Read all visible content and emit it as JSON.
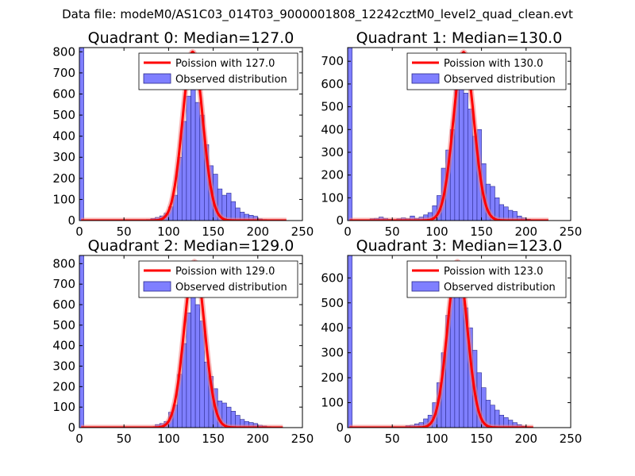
{
  "figure_title": "Data file: modeM0/AS1C03_014T03_9000001808_12242cztM0_level2_quad_clean.evt",
  "colors": {
    "hist_fill": "#7f7fff",
    "hist_edge": "#2a2a8c",
    "poisson_line": "#ff0000",
    "poisson_shadow": "#f08080"
  },
  "chart_data": [
    {
      "type": "bar",
      "title": "Quadrant 0: Median=127.0",
      "median": 127.0,
      "legend": {
        "line_label": "Poission with 127.0",
        "bar_label": "Observed distribution",
        "location": "upper-right"
      },
      "xlim": [
        0,
        250
      ],
      "ylim": [
        0,
        820
      ],
      "xticks": [
        0,
        50,
        100,
        150,
        200,
        250
      ],
      "yticks": [
        0,
        100,
        200,
        300,
        400,
        500,
        600,
        700,
        800
      ],
      "bin_width": 5,
      "bins": [
        {
          "x": 0,
          "y": 820
        },
        {
          "x": 75,
          "y": 5
        },
        {
          "x": 80,
          "y": 10
        },
        {
          "x": 85,
          "y": 15
        },
        {
          "x": 90,
          "y": 22
        },
        {
          "x": 95,
          "y": 35
        },
        {
          "x": 100,
          "y": 65
        },
        {
          "x": 105,
          "y": 120
        },
        {
          "x": 110,
          "y": 300
        },
        {
          "x": 115,
          "y": 470
        },
        {
          "x": 120,
          "y": 590
        },
        {
          "x": 125,
          "y": 700
        },
        {
          "x": 130,
          "y": 560
        },
        {
          "x": 135,
          "y": 500
        },
        {
          "x": 140,
          "y": 360
        },
        {
          "x": 145,
          "y": 260
        },
        {
          "x": 150,
          "y": 220
        },
        {
          "x": 155,
          "y": 150
        },
        {
          "x": 160,
          "y": 120
        },
        {
          "x": 165,
          "y": 130
        },
        {
          "x": 170,
          "y": 90
        },
        {
          "x": 175,
          "y": 60
        },
        {
          "x": 180,
          "y": 40
        },
        {
          "x": 185,
          "y": 30
        },
        {
          "x": 190,
          "y": 25
        },
        {
          "x": 195,
          "y": 20
        },
        {
          "x": 200,
          "y": 8
        },
        {
          "x": 205,
          "y": 5
        },
        {
          "x": 210,
          "y": 3
        }
      ],
      "line_xrange": [
        2,
        232
      ],
      "line_peak": 800
    },
    {
      "type": "bar",
      "title": "Quadrant 1: Median=130.0",
      "median": 130.0,
      "legend": {
        "line_label": "Poission with 130.0",
        "bar_label": "Observed distribution",
        "location": "upper-right"
      },
      "xlim": [
        0,
        250
      ],
      "ylim": [
        0,
        760
      ],
      "xticks": [
        0,
        50,
        100,
        150,
        200,
        250
      ],
      "yticks": [
        0,
        100,
        200,
        300,
        400,
        500,
        600,
        700
      ],
      "bin_width": 5,
      "bins": [
        {
          "x": 0,
          "y": 760
        },
        {
          "x": 25,
          "y": 8
        },
        {
          "x": 30,
          "y": 10
        },
        {
          "x": 35,
          "y": 15
        },
        {
          "x": 40,
          "y": 10
        },
        {
          "x": 45,
          "y": 5
        },
        {
          "x": 55,
          "y": 8
        },
        {
          "x": 60,
          "y": 12
        },
        {
          "x": 65,
          "y": 8
        },
        {
          "x": 70,
          "y": 20
        },
        {
          "x": 75,
          "y": 10
        },
        {
          "x": 80,
          "y": 15
        },
        {
          "x": 85,
          "y": 25
        },
        {
          "x": 90,
          "y": 35
        },
        {
          "x": 95,
          "y": 65
        },
        {
          "x": 100,
          "y": 110
        },
        {
          "x": 105,
          "y": 230
        },
        {
          "x": 110,
          "y": 310
        },
        {
          "x": 115,
          "y": 400
        },
        {
          "x": 120,
          "y": 600
        },
        {
          "x": 125,
          "y": 680
        },
        {
          "x": 130,
          "y": 560
        },
        {
          "x": 135,
          "y": 490
        },
        {
          "x": 140,
          "y": 370
        },
        {
          "x": 145,
          "y": 400
        },
        {
          "x": 150,
          "y": 250
        },
        {
          "x": 155,
          "y": 160
        },
        {
          "x": 160,
          "y": 150
        },
        {
          "x": 165,
          "y": 100
        },
        {
          "x": 170,
          "y": 70
        },
        {
          "x": 175,
          "y": 60
        },
        {
          "x": 180,
          "y": 45
        },
        {
          "x": 185,
          "y": 40
        },
        {
          "x": 190,
          "y": 20
        },
        {
          "x": 195,
          "y": 12
        },
        {
          "x": 200,
          "y": 6
        },
        {
          "x": 205,
          "y": 3
        }
      ],
      "line_xrange": [
        2,
        225
      ],
      "line_peak": 740
    },
    {
      "type": "bar",
      "title": "Quadrant 2: Median=129.0",
      "median": 129.0,
      "legend": {
        "line_label": "Poission with 129.0",
        "bar_label": "Observed distribution",
        "location": "upper-right"
      },
      "xlim": [
        0,
        250
      ],
      "ylim": [
        0,
        840
      ],
      "xticks": [
        0,
        50,
        100,
        150,
        200,
        250
      ],
      "yticks": [
        0,
        100,
        200,
        300,
        400,
        500,
        600,
        700,
        800
      ],
      "bin_width": 5,
      "bins": [
        {
          "x": 0,
          "y": 840
        },
        {
          "x": 85,
          "y": 15
        },
        {
          "x": 90,
          "y": 20
        },
        {
          "x": 95,
          "y": 30
        },
        {
          "x": 100,
          "y": 75
        },
        {
          "x": 105,
          "y": 110
        },
        {
          "x": 110,
          "y": 260
        },
        {
          "x": 115,
          "y": 410
        },
        {
          "x": 120,
          "y": 560
        },
        {
          "x": 125,
          "y": 650
        },
        {
          "x": 130,
          "y": 600
        },
        {
          "x": 135,
          "y": 520
        },
        {
          "x": 140,
          "y": 320
        },
        {
          "x": 145,
          "y": 250
        },
        {
          "x": 150,
          "y": 190
        },
        {
          "x": 155,
          "y": 130
        },
        {
          "x": 160,
          "y": 120
        },
        {
          "x": 165,
          "y": 100
        },
        {
          "x": 170,
          "y": 80
        },
        {
          "x": 175,
          "y": 60
        },
        {
          "x": 180,
          "y": 40
        },
        {
          "x": 185,
          "y": 30
        },
        {
          "x": 190,
          "y": 25
        },
        {
          "x": 195,
          "y": 20
        },
        {
          "x": 200,
          "y": 12
        },
        {
          "x": 205,
          "y": 8
        },
        {
          "x": 210,
          "y": 5
        }
      ],
      "line_xrange": [
        2,
        228
      ],
      "line_peak": 810
    },
    {
      "type": "bar",
      "title": "Quadrant 3: Median=123.0",
      "median": 123.0,
      "legend": {
        "line_label": "Poission with 123.0",
        "bar_label": "Observed distribution",
        "location": "upper-right"
      },
      "xlim": [
        0,
        250
      ],
      "ylim": [
        0,
        690
      ],
      "xticks": [
        0,
        50,
        100,
        150,
        200,
        250
      ],
      "yticks": [
        0,
        100,
        200,
        300,
        400,
        500,
        600
      ],
      "bin_width": 5,
      "bins": [
        {
          "x": 0,
          "y": 690
        },
        {
          "x": 65,
          "y": 8
        },
        {
          "x": 70,
          "y": 10
        },
        {
          "x": 75,
          "y": 15
        },
        {
          "x": 80,
          "y": 20
        },
        {
          "x": 85,
          "y": 35
        },
        {
          "x": 90,
          "y": 50
        },
        {
          "x": 95,
          "y": 100
        },
        {
          "x": 100,
          "y": 180
        },
        {
          "x": 105,
          "y": 300
        },
        {
          "x": 110,
          "y": 450
        },
        {
          "x": 115,
          "y": 550
        },
        {
          "x": 120,
          "y": 640
        },
        {
          "x": 125,
          "y": 580
        },
        {
          "x": 130,
          "y": 480
        },
        {
          "x": 135,
          "y": 400
        },
        {
          "x": 140,
          "y": 310
        },
        {
          "x": 145,
          "y": 220
        },
        {
          "x": 150,
          "y": 160
        },
        {
          "x": 155,
          "y": 110
        },
        {
          "x": 160,
          "y": 90
        },
        {
          "x": 165,
          "y": 70
        },
        {
          "x": 170,
          "y": 50
        },
        {
          "x": 175,
          "y": 40
        },
        {
          "x": 180,
          "y": 30
        },
        {
          "x": 185,
          "y": 20
        },
        {
          "x": 190,
          "y": 12
        },
        {
          "x": 195,
          "y": 6
        }
      ],
      "line_xrange": [
        2,
        208
      ],
      "line_peak": 665
    }
  ]
}
